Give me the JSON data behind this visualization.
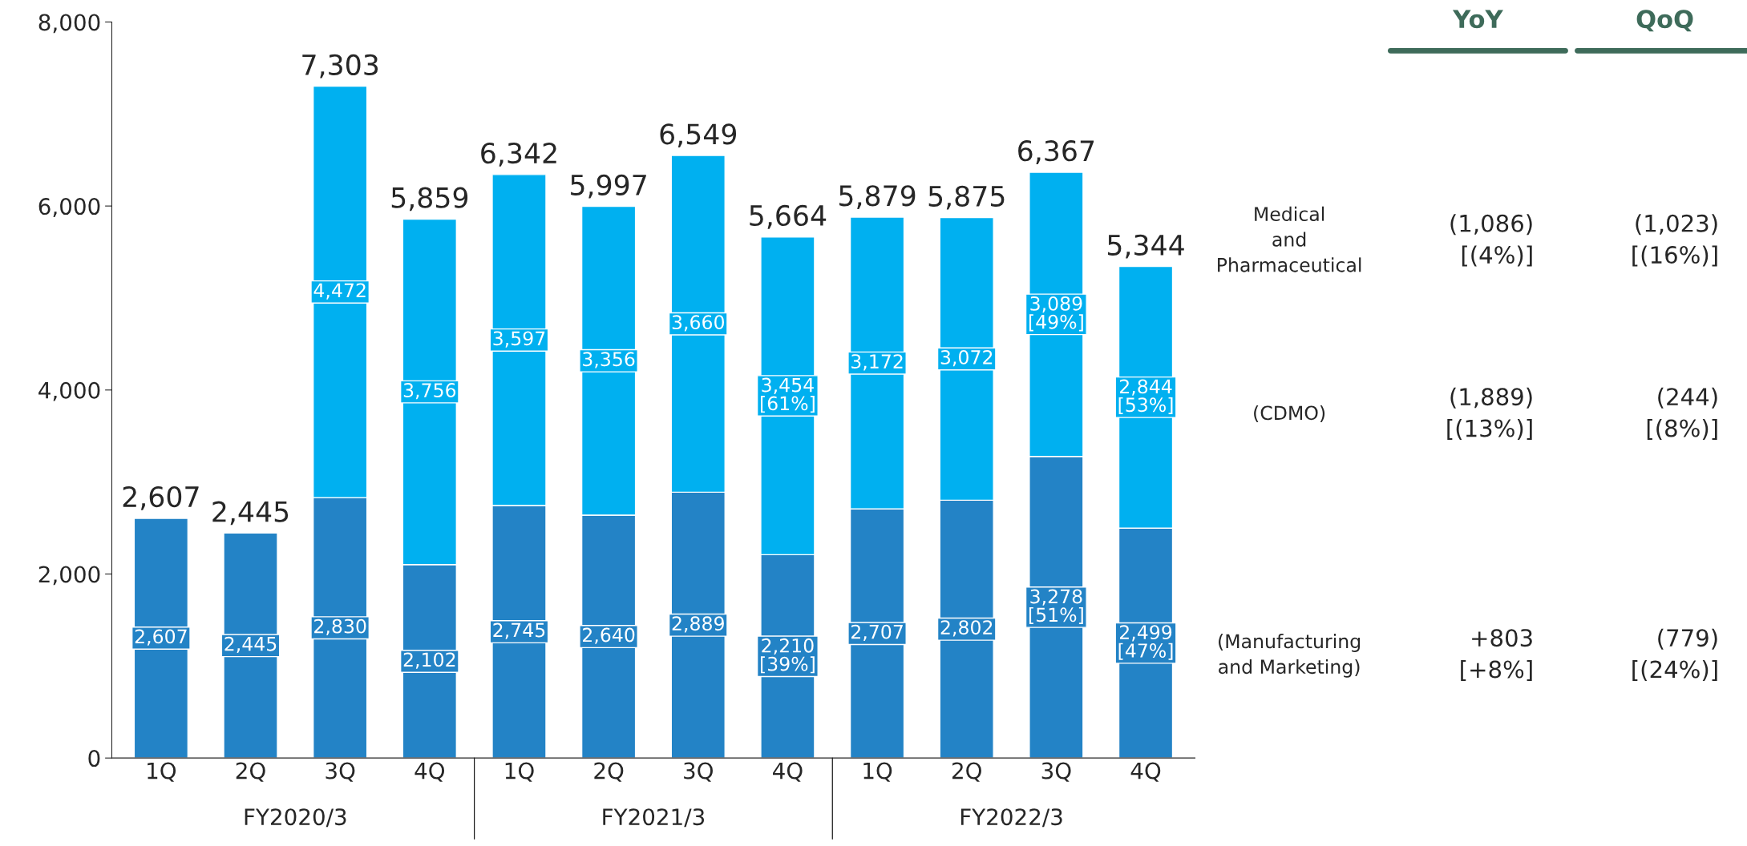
{
  "chart_data": {
    "type": "bar",
    "stacked": true,
    "categories": [
      "1Q",
      "2Q",
      "3Q",
      "4Q",
      "1Q",
      "2Q",
      "3Q",
      "4Q",
      "1Q",
      "2Q",
      "3Q",
      "4Q"
    ],
    "series": [
      {
        "name": "(Manufacturing\nand Marketing)",
        "color": "#2383c6",
        "values": [
          2607,
          2445,
          2830,
          2102,
          2745,
          2640,
          2889,
          2210,
          2707,
          2802,
          3278,
          2499
        ],
        "value_labels": [
          "2,607",
          "2,445",
          "2,830",
          "2,102",
          "2,745",
          "2,640",
          "2,889",
          "2,210\n[39%]",
          "2,707",
          "2,802",
          "3,278\n[51%]",
          "2,499\n[47%]"
        ]
      },
      {
        "name": "(CDMO)",
        "color": "#00b0f0",
        "values": [
          null,
          null,
          4472,
          3756,
          3597,
          3356,
          3660,
          3454,
          3172,
          3072,
          3089,
          2844
        ],
        "value_labels": [
          null,
          null,
          "4,472",
          "3,756",
          "3,597",
          "3,356",
          "3,660",
          "3,454\n[61%]",
          "3,172",
          "3,072",
          "3,089\n[49%]",
          "2,844\n[53%]"
        ]
      }
    ],
    "totals": [
      "2,607",
      "2,445",
      "7,303",
      "5,859",
      "6,342",
      "5,997",
      "6,549",
      "5,664",
      "5,879",
      "5,875",
      "6,367",
      "5,344"
    ],
    "ylim": [
      0,
      8000
    ],
    "yticks": [
      {
        "value": 0,
        "label": "0"
      },
      {
        "value": 2000,
        "label": "2,000"
      },
      {
        "value": 4000,
        "label": "4,000"
      },
      {
        "value": 6000,
        "label": "6,000"
      },
      {
        "value": 8000,
        "label": "8,000"
      }
    ],
    "grid": false,
    "legend": "right",
    "annotations": [
      "FY2020/3",
      "FY2021/3",
      "FY2022/3",
      "YoY",
      "QoQ",
      "Medical\nand\nPharmaceutical",
      "(1,086)\n[(4%)]",
      "(1,023)\n[(16%)]",
      "(1,889)\n[(13%)]",
      "(244)\n[(8%)]",
      "+803\n[+8%]",
      "(779)\n[(24%)]"
    ]
  }
}
